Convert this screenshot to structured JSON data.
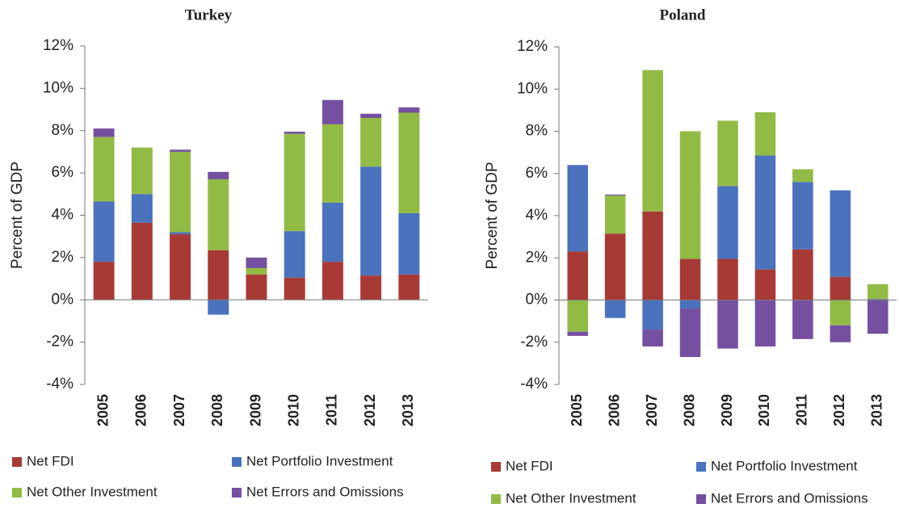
{
  "chart_data": [
    {
      "type": "bar",
      "stacked": true,
      "title": "Turkey",
      "ylabel": "Percent of GDP",
      "categories": [
        "2005",
        "2006",
        "2007",
        "2008",
        "2009",
        "2010",
        "2011",
        "2012",
        "2013"
      ],
      "ylim": [
        -4,
        12
      ],
      "yticks": [
        {
          "value": -4,
          "label": "-4%"
        },
        {
          "value": -2,
          "label": "-2%"
        },
        {
          "value": 0,
          "label": "0%"
        },
        {
          "value": 2,
          "label": "2%"
        },
        {
          "value": 4,
          "label": "4%"
        },
        {
          "value": 6,
          "label": "6%"
        },
        {
          "value": 8,
          "label": "8%"
        },
        {
          "value": 10,
          "label": "10%"
        },
        {
          "value": 12,
          "label": "12%"
        }
      ],
      "series": [
        {
          "name": "Net FDI",
          "color": "#a83a36",
          "values": [
            1.8,
            3.65,
            3.1,
            2.35,
            1.2,
            1.05,
            1.8,
            1.15,
            1.2
          ]
        },
        {
          "name": "Net Portfolio Investment",
          "color": "#4a72bd",
          "values": [
            2.85,
            1.35,
            0.1,
            -0.7,
            0,
            2.2,
            2.8,
            5.15,
            2.9
          ]
        },
        {
          "name": "Net Other Investment",
          "color": "#92bb45",
          "values": [
            3.05,
            2.2,
            3.8,
            3.35,
            0.3,
            4.6,
            3.7,
            2.3,
            4.75
          ]
        },
        {
          "name": "Net Errors and Omissions",
          "color": "#7650a0",
          "values": [
            0.4,
            0,
            0.1,
            0.35,
            0.5,
            0.1,
            1.15,
            0.2,
            0.25
          ]
        }
      ]
    },
    {
      "type": "bar",
      "stacked": true,
      "title": "Poland",
      "ylabel": "Percent of GDP",
      "categories": [
        "2005",
        "2006",
        "2007",
        "2008",
        "2009",
        "2010",
        "2011",
        "2012",
        "2013"
      ],
      "ylim": [
        -4,
        12
      ],
      "yticks": [
        {
          "value": -4,
          "label": "-4%"
        },
        {
          "value": -2,
          "label": "-2%"
        },
        {
          "value": 0,
          "label": "0%"
        },
        {
          "value": 2,
          "label": "2%"
        },
        {
          "value": 4,
          "label": "4%"
        },
        {
          "value": 6,
          "label": "6%"
        },
        {
          "value": 8,
          "label": "8%"
        },
        {
          "value": 10,
          "label": "10%"
        },
        {
          "value": 12,
          "label": "12%"
        }
      ],
      "series": [
        {
          "name": "Net FDI",
          "color": "#a83a36",
          "values": [
            2.3,
            3.15,
            4.2,
            1.95,
            1.95,
            1.45,
            2.4,
            1.1,
            0
          ]
        },
        {
          "name": "Net Portfolio Investment",
          "color": "#4a72bd",
          "values": [
            4.1,
            -0.85,
            -1.4,
            -0.4,
            3.45,
            5.4,
            3.2,
            4.1,
            0.05
          ]
        },
        {
          "name": "Net Other Investment",
          "color": "#92bb45",
          "values": [
            -1.5,
            1.8,
            6.7,
            6.05,
            3.1,
            2.05,
            0.6,
            -1.2,
            0.7
          ]
        },
        {
          "name": "Net Errors and Omissions",
          "color": "#7650a0",
          "values": [
            -0.2,
            0.05,
            -0.8,
            -2.3,
            -2.3,
            -2.2,
            -1.85,
            -0.8,
            -1.6
          ]
        }
      ]
    }
  ]
}
